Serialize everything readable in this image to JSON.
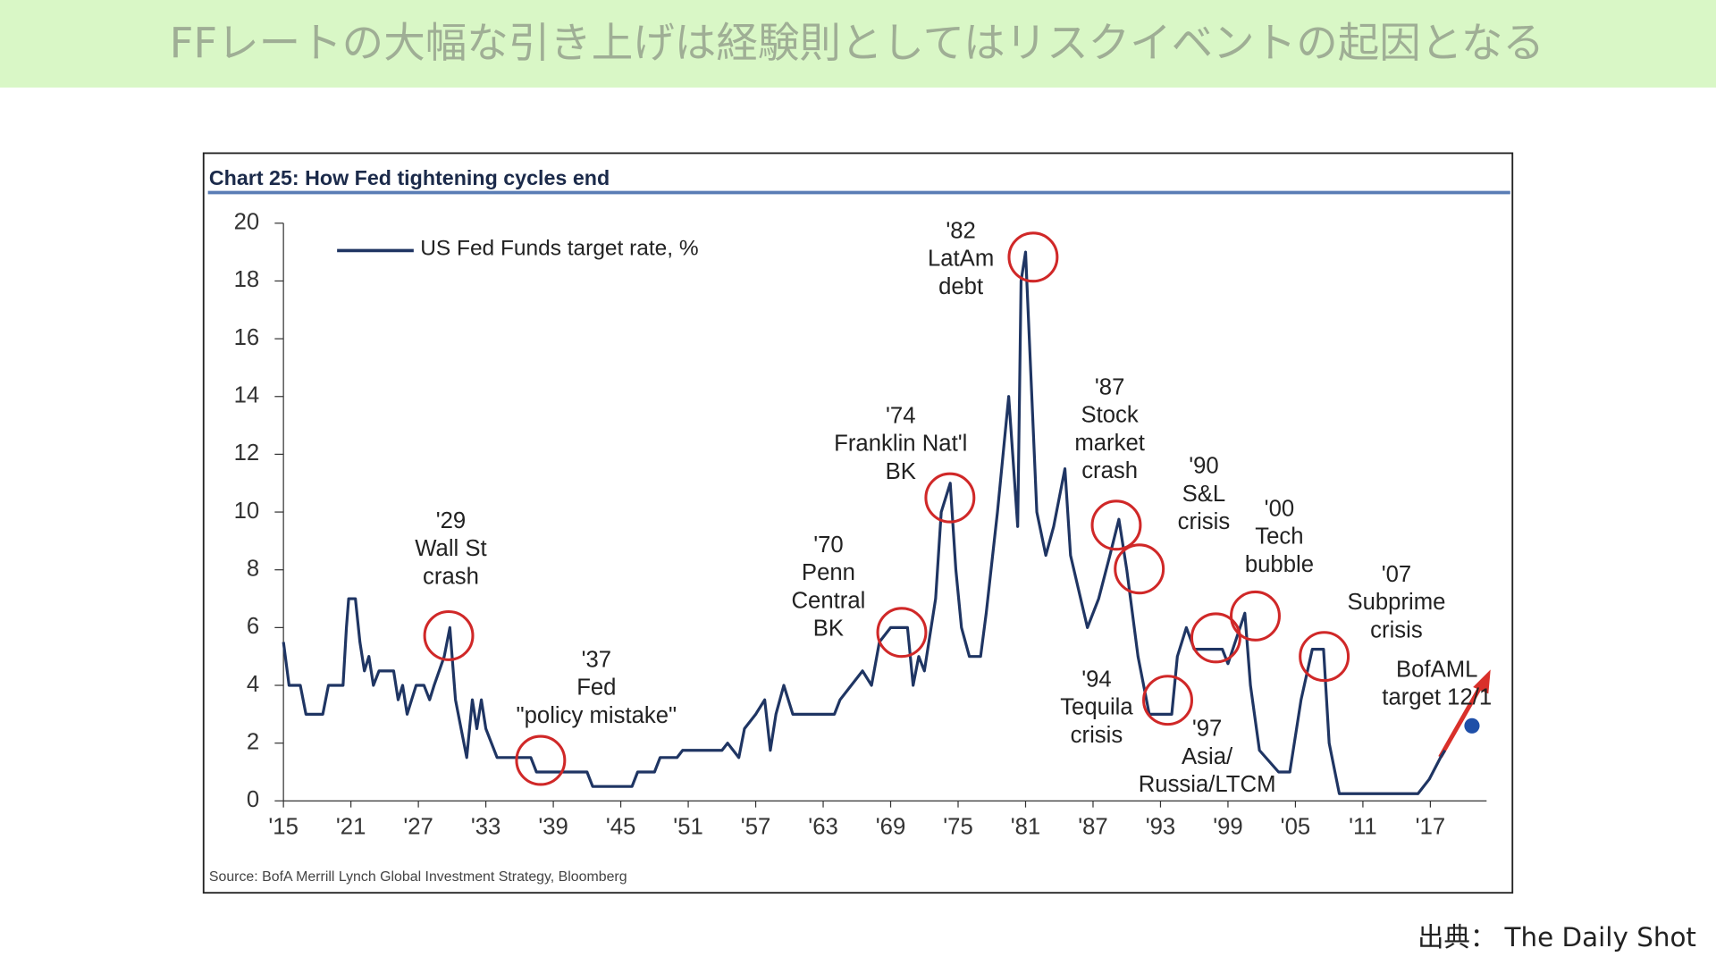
{
  "header": {
    "title": "FFレートの大幅な引き上げは経験則としてはリスクイベントの起因となる"
  },
  "footer": {
    "source": "出典： The Daily Shot"
  },
  "chart_data": {
    "type": "line",
    "title": "Chart 25: How Fed tightening cycles end",
    "source": "Source: BofA Merrill Lynch Global Investment Strategy, Bloomberg",
    "x": [
      1915,
      1915.5,
      1916.5,
      1917,
      1918.5,
      1919,
      1920.3,
      1920.6,
      1920.8,
      1921.4,
      1921.8,
      1922.2,
      1922.6,
      1923,
      1923.5,
      1924.8,
      1925.2,
      1925.6,
      1926,
      1926.4,
      1926.8,
      1927.5,
      1928,
      1928.4,
      1929.3,
      1929.8,
      1930.3,
      1930.8,
      1931.3,
      1931.8,
      1932.2,
      1932.6,
      1933,
      1933.5,
      1934,
      1937,
      1937.5,
      1942,
      1942.5,
      1946,
      1946.5,
      1948,
      1948.5,
      1950,
      1950.5,
      1954,
      1954.5,
      1955.5,
      1956,
      1957,
      1957.8,
      1958.3,
      1958.8,
      1959.5,
      1960.3,
      1961,
      1964,
      1964.5,
      1965.5,
      1966.5,
      1967.3,
      1968,
      1969,
      1970.5,
      1971,
      1971.5,
      1972,
      1973,
      1973.5,
      1974.3,
      1974.8,
      1975.3,
      1976,
      1977,
      1977.5,
      1978.5,
      1979.5,
      1980.3,
      1980.6,
      1981,
      1981.5,
      1982,
      1982.8,
      1983.5,
      1984.5,
      1985,
      1986.5,
      1987.5,
      1988.5,
      1989.3,
      1990,
      1991,
      1992,
      1994,
      1994.5,
      1995.3,
      1996,
      1998.5,
      1999,
      2000.5,
      2001,
      2001.8,
      2003.5,
      2004.5,
      2005.5,
      2006.5,
      2007.5,
      2008,
      2008.9,
      2015.9,
      2016.9,
      2017.9,
      2018.3
    ],
    "series": [
      {
        "name": "US Fed Funds target rate, %",
        "color": "#1f3563",
        "values": [
          5.5,
          4,
          4,
          3,
          3,
          4,
          4,
          6,
          7,
          7,
          5.5,
          4.5,
          5,
          4,
          4.5,
          4.5,
          3.5,
          4,
          3,
          3.5,
          4,
          4,
          3.5,
          4,
          5,
          6,
          3.5,
          2.5,
          1.5,
          3.5,
          2.5,
          3.5,
          2.5,
          2,
          1.5,
          1.5,
          1,
          1,
          0.5,
          0.5,
          1,
          1,
          1.5,
          1.5,
          1.75,
          1.75,
          2,
          1.5,
          2.5,
          3,
          3.5,
          1.75,
          3,
          4,
          3,
          3,
          3,
          3.5,
          4,
          4.5,
          4,
          5.5,
          6,
          6,
          4,
          5,
          4.5,
          7,
          10,
          11,
          8,
          6,
          5,
          5,
          6.5,
          10,
          14,
          9.5,
          18,
          19,
          14.5,
          10,
          8.5,
          9.5,
          11.5,
          8.5,
          6,
          7,
          8.5,
          9.75,
          8,
          5,
          3,
          3,
          5,
          6,
          5.25,
          5.25,
          4.75,
          6.5,
          4,
          1.75,
          1,
          1,
          3.5,
          5.25,
          5.25,
          2,
          0.25,
          0.25,
          0.75,
          1.5,
          1.75
        ]
      }
    ],
    "xlim": [
      1915,
      2022
    ],
    "ylim": [
      0,
      20
    ],
    "xticks": [
      {
        "value": 1915,
        "label": "'15"
      },
      {
        "value": 1921,
        "label": "'21"
      },
      {
        "value": 1927,
        "label": "'27"
      },
      {
        "value": 1933,
        "label": "'33"
      },
      {
        "value": 1939,
        "label": "'39"
      },
      {
        "value": 1945,
        "label": "'45"
      },
      {
        "value": 1951,
        "label": "'51"
      },
      {
        "value": 1957,
        "label": "'57"
      },
      {
        "value": 1963,
        "label": "'63"
      },
      {
        "value": 1969,
        "label": "'69"
      },
      {
        "value": 1975,
        "label": "'75"
      },
      {
        "value": 1981,
        "label": "'81"
      },
      {
        "value": 1987,
        "label": "'87"
      },
      {
        "value": 1993,
        "label": "'93"
      },
      {
        "value": 1999,
        "label": "'99"
      },
      {
        "value": 2005,
        "label": "'05"
      },
      {
        "value": 2011,
        "label": "'11"
      },
      {
        "value": 2017,
        "label": "'17"
      }
    ],
    "yticks": [
      0,
      2,
      4,
      6,
      8,
      10,
      12,
      14,
      16,
      18,
      20
    ],
    "target": {
      "x": 2020.7,
      "value": 2.6,
      "color": "#1f4fa8"
    },
    "annotations": [
      {
        "lines": [
          "'29",
          "Wall St",
          "crash"
        ]
      },
      {
        "lines": [
          "'37",
          "Fed",
          "\"policy mistake\""
        ]
      },
      {
        "lines": [
          "'70",
          "Penn",
          "Central",
          "BK"
        ]
      },
      {
        "lines": [
          "'74",
          "Franklin Nat'l",
          "BK"
        ]
      },
      {
        "lines": [
          "'82",
          "LatAm",
          "debt"
        ]
      },
      {
        "lines": [
          "'87",
          "Stock",
          "market",
          "crash"
        ]
      },
      {
        "lines": [
          "'90",
          "S&L",
          "crisis"
        ]
      },
      {
        "lines": [
          "'00",
          "Tech",
          "bubble"
        ]
      },
      {
        "lines": [
          "'07",
          "Subprime",
          "crisis"
        ]
      },
      {
        "lines": [
          "'94",
          "Tequila",
          "crisis"
        ]
      },
      {
        "lines": [
          "'97",
          "Asia/",
          "Russia/LTCM"
        ]
      },
      {
        "lines": [
          "BofAML",
          "target 12/1"
        ]
      }
    ]
  }
}
